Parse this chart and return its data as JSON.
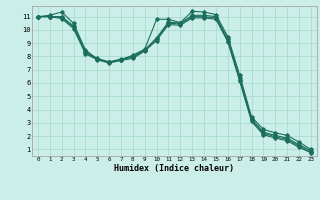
{
  "xlabel": "Humidex (Indice chaleur)",
  "bg_color": "#cceee8",
  "grid_color": "#aaddcc",
  "line_color": "#1a6e5e",
  "xlim": [
    -0.5,
    23.5
  ],
  "ylim": [
    0.5,
    11.8
  ],
  "xticks": [
    0,
    1,
    2,
    3,
    4,
    5,
    6,
    7,
    8,
    9,
    10,
    11,
    12,
    13,
    14,
    15,
    16,
    17,
    18,
    19,
    20,
    21,
    22,
    23
  ],
  "yticks": [
    1,
    2,
    3,
    4,
    5,
    6,
    7,
    8,
    9,
    10,
    11
  ],
  "series": [
    {
      "x": [
        0,
        1,
        2,
        3,
        4,
        5,
        6,
        7,
        8,
        9,
        10,
        11,
        12,
        13,
        14,
        15,
        16,
        17,
        18,
        19,
        20,
        21,
        22,
        23
      ],
      "y": [
        11,
        11.1,
        11.35,
        10.5,
        8.5,
        7.8,
        7.55,
        7.75,
        8.1,
        8.55,
        10.8,
        10.8,
        10.55,
        11.4,
        11.35,
        11.15,
        9.5,
        6.6,
        3.45,
        2.5,
        2.25,
        2.05,
        1.55,
        1.0
      ]
    },
    {
      "x": [
        0,
        1,
        2,
        3,
        4,
        5,
        6,
        7,
        8,
        9,
        10,
        11,
        12,
        13,
        14,
        15,
        16,
        17,
        18,
        19,
        20,
        21,
        22,
        23
      ],
      "y": [
        11,
        11.0,
        11.0,
        10.3,
        8.35,
        7.85,
        7.6,
        7.8,
        8.0,
        8.5,
        9.4,
        10.6,
        10.5,
        11.1,
        11.1,
        11.0,
        9.3,
        6.35,
        3.3,
        2.3,
        2.05,
        1.85,
        1.35,
        0.9
      ]
    },
    {
      "x": [
        0,
        1,
        2,
        3,
        4,
        5,
        6,
        7,
        8,
        9,
        10,
        11,
        12,
        13,
        14,
        15,
        16,
        17,
        18,
        19,
        20,
        21,
        22,
        23
      ],
      "y": [
        11,
        11.0,
        10.95,
        10.2,
        8.3,
        7.8,
        7.55,
        7.75,
        7.95,
        8.45,
        9.3,
        10.5,
        10.45,
        11.0,
        11.0,
        10.9,
        9.2,
        6.25,
        3.2,
        2.2,
        1.95,
        1.75,
        1.25,
        0.8
      ]
    },
    {
      "x": [
        0,
        1,
        2,
        3,
        4,
        5,
        6,
        7,
        8,
        9,
        10,
        11,
        12,
        13,
        14,
        15,
        16,
        17,
        18,
        19,
        20,
        21,
        22,
        23
      ],
      "y": [
        11,
        11.0,
        10.85,
        10.1,
        8.2,
        7.75,
        7.5,
        7.7,
        7.85,
        8.4,
        9.2,
        10.4,
        10.35,
        10.9,
        10.9,
        10.8,
        9.1,
        6.15,
        3.1,
        2.1,
        1.85,
        1.65,
        1.15,
        0.75
      ]
    }
  ]
}
